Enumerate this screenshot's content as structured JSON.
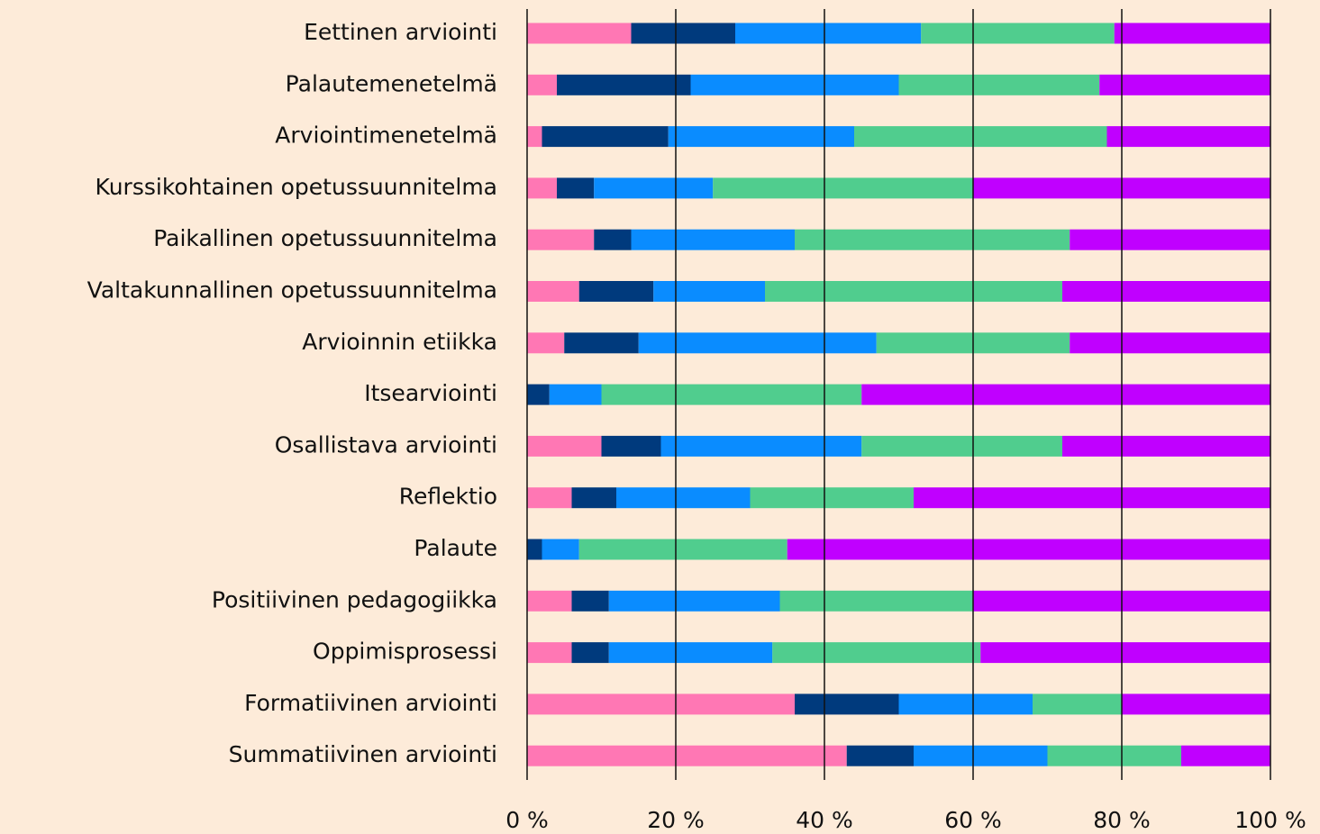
{
  "chart_data": {
    "type": "stacked-barh",
    "categories": [
      "Eettinen arviointi",
      "Palautemenetelmä",
      "Arviointimenetelmä",
      "Kurssikohtainen opetussuunnitelma",
      "Paikallinen opetussuunnitelma",
      "Valtakunnallinen opetussuunnitelma",
      "Arvioinnin etiikka",
      "Itsearviointi",
      "Osallistava arviointi",
      "Reflektio",
      "Palaute",
      "Positiivinen pedagogiikka",
      "Oppimisprosessi",
      "Formatiivinen arviointi",
      "Summatiivinen arviointi"
    ],
    "series": [
      {
        "color": "#ff77b4",
        "values": [
          14,
          4,
          2,
          4,
          9,
          7,
          5,
          0,
          10,
          6,
          0,
          6,
          6,
          36,
          43
        ]
      },
      {
        "color": "#003a7d",
        "values": [
          14,
          18,
          17,
          5,
          5,
          10,
          10,
          3,
          8,
          6,
          2,
          5,
          5,
          14,
          9
        ]
      },
      {
        "color": "#0a8cff",
        "values": [
          25,
          28,
          25,
          16,
          22,
          15,
          32,
          7,
          27,
          18,
          5,
          23,
          22,
          18,
          18
        ]
      },
      {
        "color": "#50cd8e",
        "values": [
          26,
          27,
          34,
          35,
          37,
          40,
          26,
          35,
          27,
          22,
          28,
          26,
          28,
          12,
          18
        ]
      },
      {
        "color": "#c000ff",
        "values": [
          21,
          23,
          22,
          40,
          27,
          28,
          27,
          55,
          28,
          48,
          65,
          40,
          39,
          20,
          12
        ]
      }
    ],
    "xlim": [
      0,
      100
    ],
    "xticks": [
      {
        "value": 0,
        "label": "0 %"
      },
      {
        "value": 20,
        "label": "20 %"
      },
      {
        "value": 40,
        "label": "40 %"
      },
      {
        "value": 60,
        "label": "60 %"
      },
      {
        "value": 80,
        "label": "80 %"
      },
      {
        "value": 100,
        "label": "100 %"
      }
    ],
    "grid": true
  }
}
